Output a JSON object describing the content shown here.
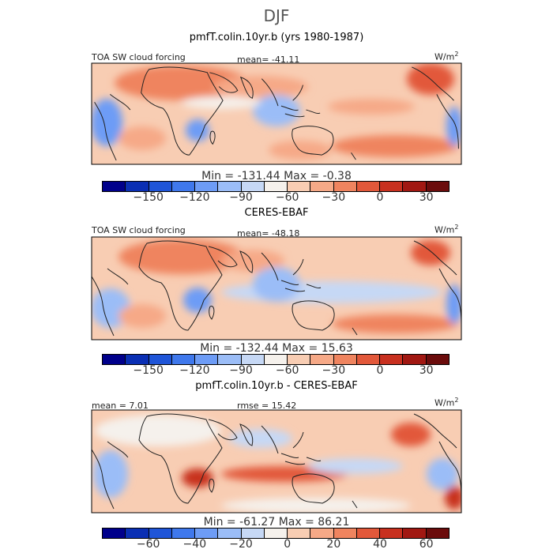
{
  "chart_data": {
    "type": "heatmap",
    "title": "DJF",
    "variable": "TOA SW cloud forcing",
    "units_label": "W/m",
    "units_exp": "2",
    "panels": [
      {
        "title": "pmfT.colin.10yr.b (yrs 1980-1987)",
        "left_label": "TOA SW cloud forcing",
        "center_label": "mean= -41.11",
        "min": -131.44,
        "max": -0.38,
        "minmax_text": "Min = -131.44 Max =  -0.38",
        "levels": [
          -165,
          -150,
          -135,
          -120,
          -105,
          -90,
          -75,
          -60,
          -45,
          -30,
          -15,
          0,
          15,
          30,
          45
        ],
        "colorbar_ticks": [
          "-150",
          "-120",
          "-90",
          "-60",
          "-30",
          "0",
          "30"
        ]
      },
      {
        "title": "CERES-EBAF",
        "left_label": "TOA SW cloud forcing",
        "center_label": "mean= -48.18",
        "min": -132.44,
        "max": 15.63,
        "minmax_text": "Min = -132.44 Max =  15.63",
        "levels": [
          -165,
          -150,
          -135,
          -120,
          -105,
          -90,
          -75,
          -60,
          -45,
          -30,
          -15,
          0,
          15,
          30,
          45
        ],
        "colorbar_ticks": [
          "-150",
          "-120",
          "-90",
          "-60",
          "-30",
          "0",
          "30"
        ]
      },
      {
        "title": "pmfT.colin.10yr.b - CERES-EBAF",
        "left_label": "mean =   7.01",
        "center_label": "rmse =  15.42",
        "min": -61.27,
        "max": 86.21,
        "minmax_text": "Min = -61.27 Max =  86.21",
        "levels": [
          -70,
          -60,
          -50,
          -40,
          -30,
          -20,
          -10,
          0,
          10,
          20,
          30,
          40,
          50,
          60,
          70
        ],
        "colorbar_ticks": [
          "-60",
          "-40",
          "-20",
          "0",
          "20",
          "40",
          "60"
        ]
      }
    ],
    "palette": [
      "#00008b",
      "#0a2fb4",
      "#1f55d8",
      "#3f78ec",
      "#6d9cf6",
      "#9bbdf7",
      "#c6d8f5",
      "#f5f1ec",
      "#f8cdb3",
      "#f6a987",
      "#ef845f",
      "#e2583a",
      "#c8301f",
      "#a11812",
      "#6b0c0c"
    ]
  }
}
